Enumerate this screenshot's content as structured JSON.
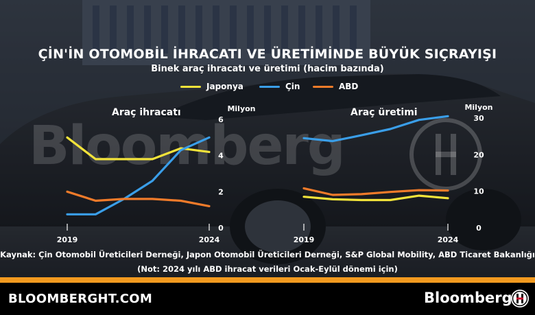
{
  "title": "ÇİN'İN OTOMOBİL İHRACATI VE ÜRETİMİNDE BÜYÜK SIÇRAYIŞI",
  "subtitle": "Binek araç ihracatı ve üretimi (hacim bazında)",
  "legend": [
    {
      "label": "Japonya",
      "color": "#f2e33a"
    },
    {
      "label": "Çin",
      "color": "#3a9ee8"
    },
    {
      "label": "ABD",
      "color": "#f07b2a"
    }
  ],
  "watermark": "Bloomberg",
  "source": "Kaynak: Çin Otomobil Üreticileri Derneği, Japon Otomobil Üreticileri Derneği, S&P Global Mobility, ABD Ticaret Bakanlığı",
  "note": "(Not: 2024 yılı ABD ihracat verileri Ocak-Eylül dönemi için)",
  "footer": {
    "site": "BLOOMBERGHT.COM",
    "brand": "Bloomberg"
  },
  "chart_data": [
    {
      "type": "line",
      "title": "Araç ihracatı",
      "ylabel": "Milyon",
      "x": [
        2019,
        2020,
        2021,
        2022,
        2023,
        2024
      ],
      "x_tick_labels": [
        "2019",
        "2024"
      ],
      "ylim": [
        0,
        6
      ],
      "y_ticks": [
        0,
        2,
        4,
        6
      ],
      "series": [
        {
          "name": "Japonya",
          "color": "#f2e33a",
          "values": [
            5.0,
            3.8,
            3.8,
            3.8,
            4.4,
            4.2
          ]
        },
        {
          "name": "Çin",
          "color": "#3a9ee8",
          "values": [
            0.75,
            0.75,
            1.6,
            2.6,
            4.3,
            5.0
          ]
        },
        {
          "name": "ABD",
          "color": "#f07b2a",
          "values": [
            2.0,
            1.5,
            1.6,
            1.6,
            1.5,
            1.2
          ]
        }
      ]
    },
    {
      "type": "line",
      "title": "Araç üretimi",
      "ylabel": "Milyon",
      "x": [
        2019,
        2020,
        2021,
        2022,
        2023,
        2024
      ],
      "x_tick_labels": [
        "2019",
        "2024"
      ],
      "ylim": [
        0,
        30
      ],
      "y_ticks": [
        0,
        10,
        20,
        30
      ],
      "series": [
        {
          "name": "Japonya",
          "color": "#f2e33a",
          "values": [
            8.5,
            7.8,
            7.6,
            7.6,
            8.8,
            8.1
          ]
        },
        {
          "name": "Çin",
          "color": "#3a9ee8",
          "values": [
            24.5,
            23.7,
            25.3,
            27.0,
            29.5,
            30.5
          ]
        },
        {
          "name": "ABD",
          "color": "#f07b2a",
          "values": [
            10.8,
            9.0,
            9.2,
            9.8,
            10.3,
            10.2
          ]
        }
      ]
    }
  ]
}
